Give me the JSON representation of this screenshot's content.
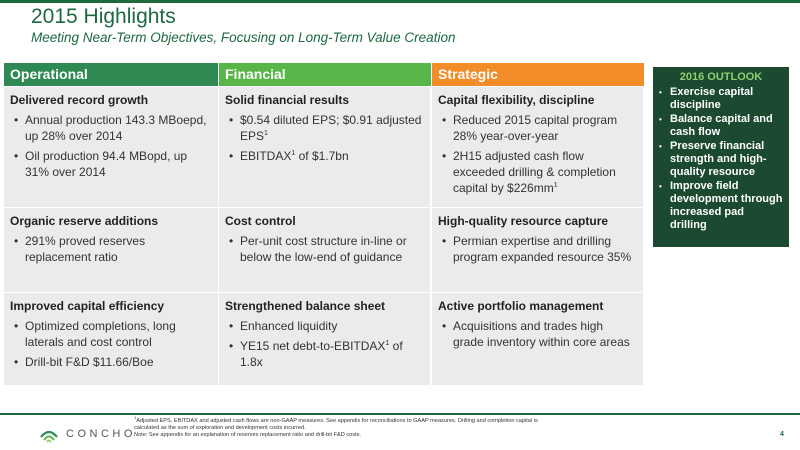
{
  "header": {
    "title": "2015 Highlights",
    "subtitle": "Meeting Near-Term Objectives, Focusing on Long-Term Value Creation"
  },
  "columns": {
    "operational": "Operational",
    "financial": "Financial",
    "strategic": "Strategic"
  },
  "cells": {
    "r0c0": {
      "title": "Delivered record growth",
      "b1": "Annual production 143.3 MBoepd, up 28% over 2014",
      "b2": "Oil production 94.4 MBopd, up 31% over 2014"
    },
    "r0c1": {
      "title": "Solid financial results",
      "b1": "$0.54 diluted EPS; $0.91 adjusted EPS",
      "b2a": "EBITDAX",
      "b2b": " of $1.7bn"
    },
    "r0c2": {
      "title": "Capital flexibility, discipline",
      "b1": "Reduced 2015 capital program 28% year-over-year",
      "b2": "2H15 adjusted cash flow exceeded drilling & completion capital by $226mm"
    },
    "r1c0": {
      "title": "Organic reserve additions",
      "b1": "291% proved reserves replacement ratio"
    },
    "r1c1": {
      "title": "Cost control",
      "b1": "Per-unit cost structure in-line or below the low-end of guidance"
    },
    "r1c2": {
      "title": "High-quality resource capture",
      "b1": "Permian expertise and drilling program expanded resource 35%"
    },
    "r2c0": {
      "title": "Improved capital efficiency",
      "b1": "Optimized completions, long laterals and cost control",
      "b2": "Drill-bit F&D $11.66/Boe"
    },
    "r2c1": {
      "title": "Strengthened balance sheet",
      "b1": "Enhanced liquidity",
      "b2a": "YE15 net debt-to-EBITDAX",
      "b2b": " of 1.8x"
    },
    "r2c2": {
      "title": "Active portfolio management",
      "b1": "Acquisitions and trades high grade inventory within core areas"
    }
  },
  "bullet_char": "•",
  "footnote_marker": "1",
  "outlook": {
    "title": "2016 OUTLOOK",
    "items": [
      "Exercise capital discipline",
      "Balance capital and cash flow",
      "Preserve financial strength and high-quality resource",
      "Improve field development through increased pad drilling"
    ]
  },
  "footer": {
    "logo_text": "CONCHO",
    "footnote_line1": "Adjusted EPS, EBITDAX and adjusted cash flows are non-GAAP measures.  See appendix for reconciliations to GAAP measures. Drilling and completion capital is",
    "footnote_line2": "calculated as the sum of exploration and development costs incurred.",
    "footnote_line3": "Note: See appendix for an explanation of reserves replacement ratio and drill-bit F&D costs.",
    "page_number": "4"
  },
  "colors": {
    "operational": "#2e8a52",
    "financial": "#58b547",
    "strategic": "#f28c28",
    "outlook_bg": "#1b4a30",
    "accent": "#1d6a3f"
  }
}
